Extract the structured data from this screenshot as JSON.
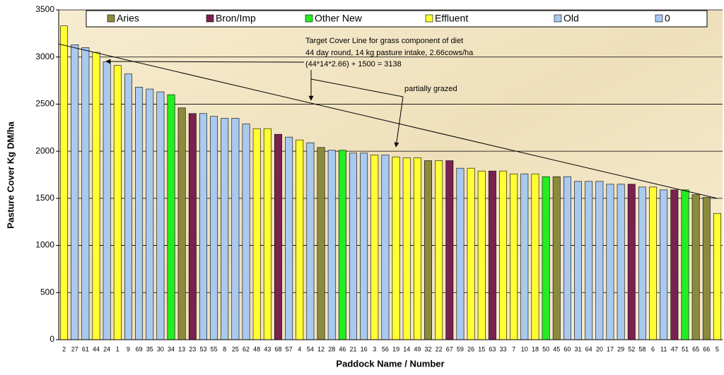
{
  "chart_data": {
    "type": "bar",
    "ylabel": "Pasture Cover Kg DM/ha",
    "xlabel": "Paddock Name / Number",
    "categories": [
      "2",
      "27",
      "61",
      "44",
      "24",
      "1",
      "9",
      "69",
      "35",
      "30",
      "34",
      "13",
      "23",
      "53",
      "55",
      "8",
      "25",
      "62",
      "48",
      "43",
      "68",
      "57",
      "4",
      "54",
      "12",
      "28",
      "46",
      "21",
      "16",
      "3",
      "56",
      "19",
      "14",
      "49",
      "32",
      "22",
      "67",
      "59",
      "26",
      "15",
      "63",
      "33",
      "7",
      "10",
      "18",
      "50",
      "45",
      "60",
      "31",
      "64",
      "20",
      "17",
      "29",
      "52",
      "58",
      "6",
      "11",
      "47",
      "51",
      "65",
      "66",
      "5"
    ],
    "series": [
      {
        "name": "Aries",
        "color": "#8c8a3c",
        "values": [
          null,
          null,
          null,
          null,
          null,
          null,
          null,
          null,
          null,
          null,
          null,
          2460,
          null,
          null,
          null,
          null,
          null,
          null,
          null,
          null,
          null,
          null,
          null,
          null,
          2040,
          null,
          null,
          null,
          null,
          null,
          null,
          null,
          null,
          null,
          1900,
          null,
          null,
          null,
          null,
          null,
          null,
          null,
          null,
          null,
          null,
          null,
          1730,
          null,
          null,
          null,
          null,
          null,
          null,
          null,
          null,
          null,
          null,
          null,
          null,
          1540,
          1510,
          null
        ]
      },
      {
        "name": "Bron/Imp",
        "color": "#7b2150",
        "values": [
          null,
          null,
          null,
          null,
          null,
          null,
          null,
          null,
          null,
          null,
          null,
          null,
          2400,
          null,
          null,
          null,
          null,
          null,
          null,
          null,
          2180,
          null,
          null,
          null,
          null,
          null,
          null,
          null,
          null,
          null,
          null,
          null,
          null,
          null,
          null,
          null,
          1900,
          null,
          null,
          null,
          1790,
          null,
          null,
          null,
          null,
          null,
          null,
          null,
          null,
          null,
          null,
          null,
          null,
          1650,
          null,
          null,
          null,
          1590,
          null,
          null,
          null,
          null
        ]
      },
      {
        "name": "Other New",
        "color": "#22ee22",
        "values": [
          null,
          null,
          null,
          null,
          null,
          null,
          null,
          null,
          null,
          null,
          2600,
          null,
          null,
          null,
          null,
          null,
          null,
          null,
          null,
          null,
          null,
          null,
          null,
          null,
          null,
          null,
          2010,
          null,
          null,
          null,
          null,
          null,
          null,
          null,
          null,
          null,
          null,
          null,
          null,
          null,
          null,
          null,
          null,
          null,
          null,
          1730,
          null,
          null,
          null,
          null,
          null,
          null,
          null,
          null,
          null,
          null,
          null,
          null,
          1590,
          null,
          null,
          null
        ]
      },
      {
        "name": "Effluent",
        "color": "#ffff33",
        "values": [
          3330,
          null,
          null,
          3050,
          null,
          2910,
          null,
          null,
          null,
          null,
          null,
          null,
          null,
          null,
          null,
          null,
          null,
          null,
          2240,
          2240,
          null,
          null,
          2120,
          null,
          null,
          null,
          null,
          null,
          null,
          1960,
          null,
          1940,
          1930,
          1930,
          null,
          1900,
          null,
          null,
          1820,
          1790,
          null,
          1790,
          1760,
          null,
          1760,
          null,
          null,
          null,
          null,
          null,
          null,
          null,
          null,
          null,
          null,
          1620,
          null,
          null,
          null,
          null,
          null,
          1340
        ]
      },
      {
        "name": "Old",
        "color": "#a9c9ee",
        "values": [
          null,
          3130,
          3100,
          null,
          2950,
          null,
          2820,
          2680,
          2660,
          2630,
          null,
          null,
          null,
          2400,
          2370,
          2350,
          2350,
          2290,
          null,
          null,
          null,
          2150,
          null,
          2090,
          null,
          2010,
          null,
          1980,
          1980,
          null,
          1960,
          null,
          null,
          null,
          null,
          null,
          null,
          1820,
          null,
          null,
          null,
          null,
          null,
          1760,
          null,
          null,
          null,
          1730,
          1680,
          1680,
          1680,
          1650,
          1650,
          null,
          1620,
          null,
          1590,
          null,
          null,
          null,
          null,
          null
        ]
      },
      {
        "name": "0",
        "color": "#a9c9ee",
        "values": [
          null,
          null,
          null,
          null,
          null,
          null,
          null,
          null,
          null,
          null,
          null,
          null,
          null,
          null,
          null,
          null,
          null,
          null,
          null,
          null,
          null,
          null,
          null,
          null,
          null,
          null,
          null,
          null,
          null,
          null,
          null,
          null,
          null,
          null,
          null,
          null,
          null,
          null,
          null,
          null,
          null,
          null,
          null,
          null,
          null,
          null,
          null,
          null,
          null,
          null,
          null,
          null,
          null,
          null,
          null,
          null,
          null,
          null,
          null,
          null,
          null,
          null
        ]
      }
    ],
    "target_line": {
      "values": [
        3138,
        1500
      ]
    },
    "annotations": [
      "Target Cover Line for  grass component of diet",
      "44 day round, 14 kg pasture intake, 2.66cows/ha",
      "(44*14*2.66) + 1500 = 3138",
      "partially grazed"
    ],
    "ylim": [
      0,
      3500
    ],
    "yticks": [
      0,
      500,
      1000,
      1500,
      2000,
      2500,
      3000,
      3500
    ],
    "grid": true
  }
}
